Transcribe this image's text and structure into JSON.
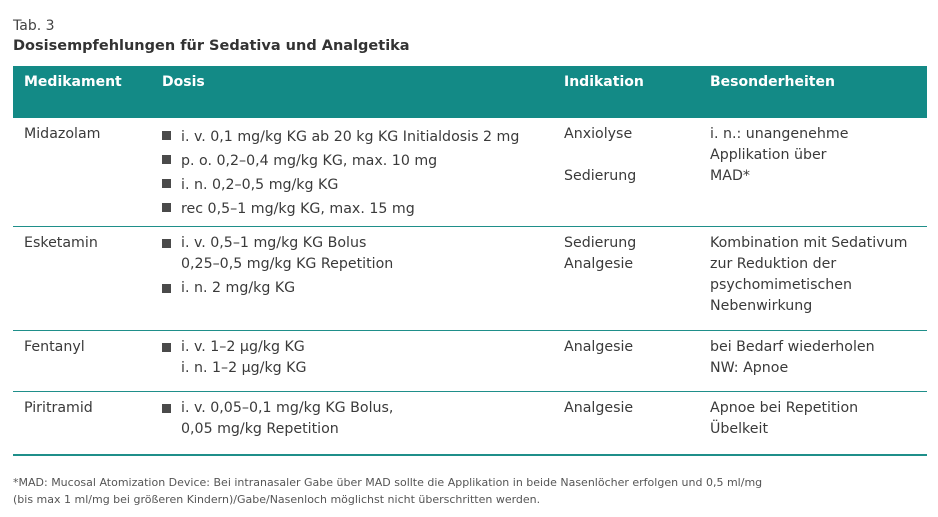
{
  "caption": {
    "label": "Tab. 3",
    "title": "Dosisempfehlungen für Sedativa und Analgetika"
  },
  "colors": {
    "header_bg": "#138a86",
    "rule": "#1f8f8a",
    "bullet": "#4a4a4a"
  },
  "table": {
    "headers": [
      "Medikament",
      "Dosis",
      "Indikation",
      "Besonderheiten"
    ],
    "rows": [
      {
        "medikament": "Midazolam",
        "dosis": [
          "i. v. 0,1 mg/kg KG ab 20 kg KG Initialdosis 2 mg",
          "p. o. 0,2–0,4 mg/kg KG, max. 10 mg",
          "i. n. 0,2–0,5 mg/kg KG",
          "rec 0,5–1 mg/kg KG, max. 15 mg"
        ],
        "indikation": [
          "Anxiolyse",
          "Sedierung"
        ],
        "besonderheiten": [
          "i. n.: unangenehme",
          "Applikation über",
          "MAD*"
        ]
      },
      {
        "medikament": "Esketamin",
        "dosis": [
          "i. v. 0,5–1 mg/kg KG Bolus",
          "0,25–0,5 mg/kg KG Repetition",
          "i. n. 2 mg/kg KG"
        ],
        "indikation": [
          "Sedierung",
          "Analgesie"
        ],
        "besonderheiten": [
          "Kombination mit Sedativum",
          "zur Reduktion der",
          "psychomimetischen",
          "Nebenwirkung"
        ]
      },
      {
        "medikament": "Fentanyl",
        "dosis": [
          "i. v. 1–2 µg/kg KG",
          "i. n. 1–2 µg/kg KG"
        ],
        "indikation": [
          "Analgesie"
        ],
        "besonderheiten": [
          "bei Bedarf wiederholen",
          "NW: Apnoe"
        ]
      },
      {
        "medikament": "Piritramid",
        "dosis": [
          "i. v. 0,05–0,1 mg/kg KG Bolus,",
          "0,05 mg/kg Repetition"
        ],
        "indikation": [
          "Analgesie"
        ],
        "besonderheiten": [
          "Apnoe bei Repetition",
          "Übelkeit"
        ]
      }
    ]
  },
  "footnote": [
    "*MAD: Mucosal Atomization Device: Bei intranasaler Gabe über MAD sollte die Applikation in beide Nasenlöcher erfolgen und 0,5 ml/mg",
    "(bis max 1 ml/mg bei größeren Kindern)/Gabe/Nasenloch möglichst nicht überschritten werden."
  ]
}
